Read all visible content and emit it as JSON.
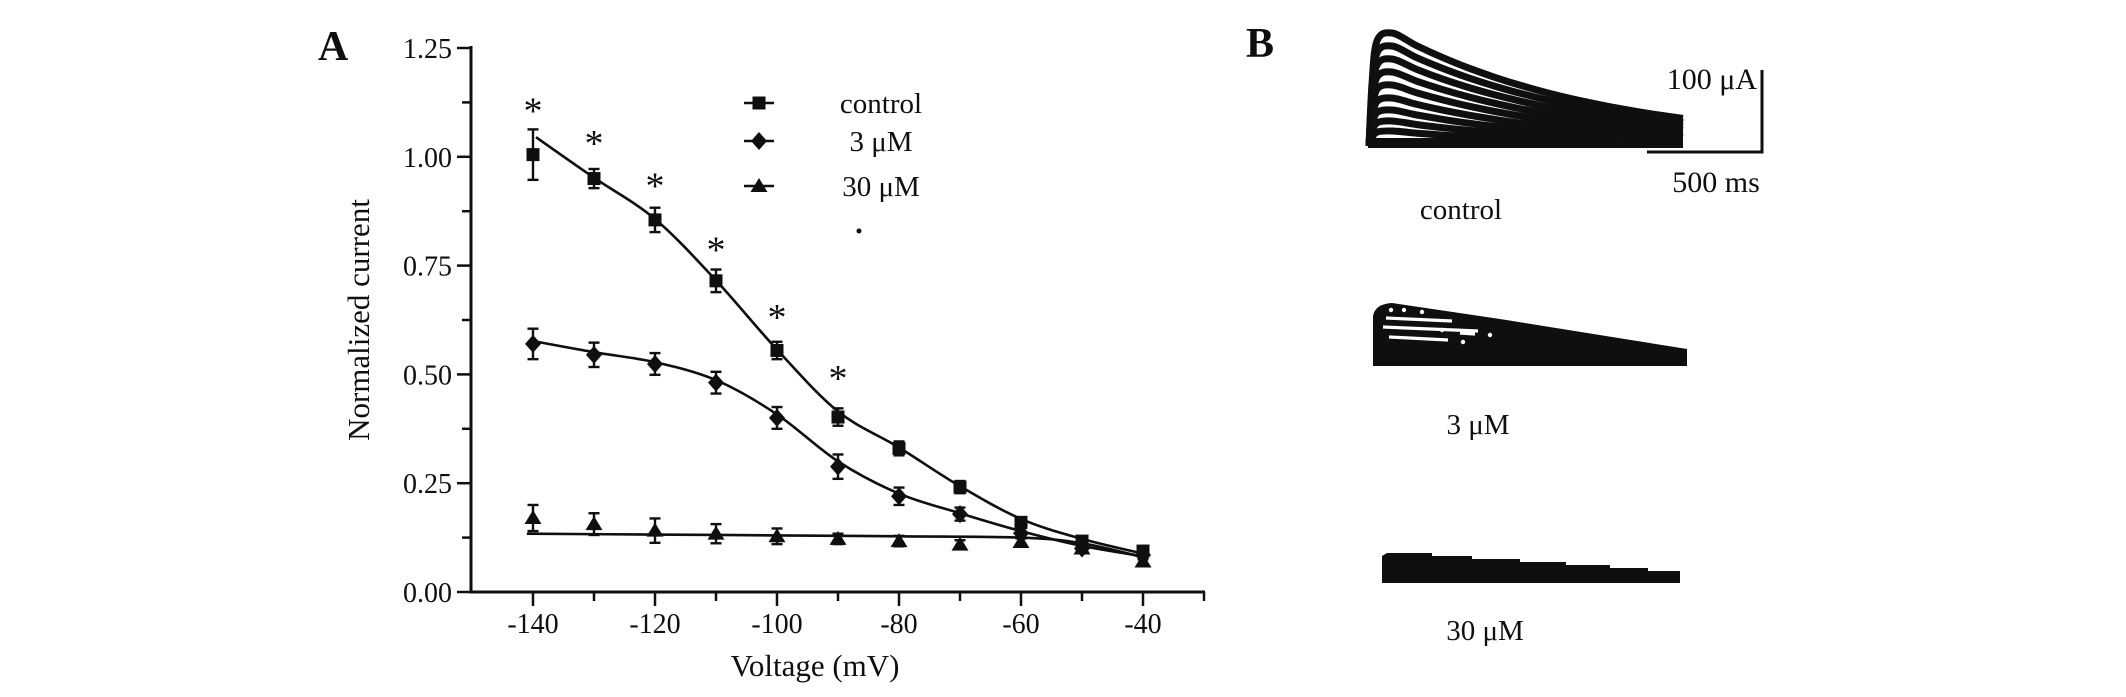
{
  "figure": {
    "background": "#ffffff",
    "ink": "#0f0f0f"
  },
  "panel_a": {
    "label": "A",
    "chart_data": {
      "type": "scatter-line",
      "xlabel": "Voltage (mV)",
      "ylabel": "Normalized current",
      "xlim": [
        -150,
        -30
      ],
      "ylim": [
        0,
        1.25
      ],
      "grid": false,
      "x": [
        -140,
        -130,
        -120,
        -110,
        -100,
        -90,
        -80,
        -70,
        -60,
        -50,
        -40
      ],
      "xticks": [
        {
          "v": -140,
          "label": "-140"
        },
        {
          "v": -120,
          "label": "-120"
        },
        {
          "v": -100,
          "label": "-100"
        },
        {
          "v": -80,
          "label": "-80"
        },
        {
          "v": -60,
          "label": "-60"
        },
        {
          "v": -40,
          "label": "-40"
        }
      ],
      "xticks_minor": [
        -130,
        -110,
        -90,
        -70,
        -50,
        -30
      ],
      "yticks": [
        {
          "v": 1.25,
          "label": "1.25"
        },
        {
          "v": 1.0,
          "label": "1.00"
        },
        {
          "v": 0.75,
          "label": "0.75"
        },
        {
          "v": 0.5,
          "label": "0.50"
        },
        {
          "v": 0.25,
          "label": "0.25"
        },
        {
          "v": 0.0,
          "label": "0.00"
        }
      ],
      "yticks_minor": [
        1.125,
        0.875,
        0.625,
        0.375,
        0.125
      ],
      "series": [
        {
          "name": "control",
          "marker": "square",
          "values": [
            1.005,
            0.95,
            0.855,
            0.715,
            0.555,
            0.402,
            0.33,
            0.241,
            0.16,
            0.117,
            0.094
          ],
          "errors": [
            0.058,
            0.022,
            0.028,
            0.026,
            0.02,
            0.02,
            0.016,
            0.014,
            0.012,
            0.01,
            0.012
          ]
        },
        {
          "name": "3 μM",
          "marker": "diamond",
          "values": [
            0.57,
            0.545,
            0.524,
            0.481,
            0.4,
            0.288,
            0.22,
            0.179,
            0.135,
            0.1,
            0.085
          ],
          "errors": [
            0.035,
            0.028,
            0.025,
            0.025,
            0.025,
            0.028,
            0.02,
            0.015,
            0.012,
            0.01,
            0.01
          ]
        },
        {
          "name": "30 μM",
          "marker": "triangle",
          "values": [
            0.17,
            0.156,
            0.141,
            0.134,
            0.128,
            0.122,
            0.117,
            0.109,
            0.115,
            0.1,
            0.07
          ],
          "errors": [
            0.03,
            0.025,
            0.028,
            0.022,
            0.018,
            0.012,
            0.012,
            0.01,
            0.01,
            0.008,
            0.008
          ]
        }
      ],
      "fit_lines": [
        {
          "series": "control",
          "points": [
            [
              -139.5,
              1.045
            ],
            [
              -130,
              0.952
            ],
            [
              -120,
              0.857
            ],
            [
              -110,
              0.716
            ],
            [
              -100,
              0.557
            ],
            [
              -90,
              0.415
            ],
            [
              -80,
              0.332
            ],
            [
              -70,
              0.243
            ],
            [
              -60,
              0.168
            ],
            [
              -50,
              0.122
            ],
            [
              -40,
              0.088
            ]
          ]
        },
        {
          "series": "3 μM",
          "points": [
            [
              -140.5,
              0.578
            ],
            [
              -130,
              0.551
            ],
            [
              -120,
              0.528
            ],
            [
              -110,
              0.487
            ],
            [
              -100,
              0.408
            ],
            [
              -90,
              0.3
            ],
            [
              -80,
              0.226
            ],
            [
              -70,
              0.181
            ],
            [
              -60,
              0.14
            ],
            [
              -50,
              0.106
            ],
            [
              -40,
              0.082
            ]
          ]
        },
        {
          "series": "30 μM",
          "points": [
            [
              -141,
              0.134
            ],
            [
              -120,
              0.132
            ],
            [
              -100,
              0.13
            ],
            [
              -80,
              0.128
            ],
            [
              -60,
              0.125
            ],
            [
              -50,
              0.112
            ],
            [
              -40,
              0.08
            ]
          ]
        }
      ],
      "significance": {
        "symbol": "*",
        "positions": [
          [
            -140,
            1.125
          ],
          [
            -130,
            1.05
          ],
          [
            -120,
            0.953
          ],
          [
            -110,
            0.805
          ],
          [
            -100,
            0.65
          ],
          [
            -90,
            0.51
          ]
        ]
      },
      "legend": {
        "entries": [
          "control",
          "3 μM",
          "30 μM"
        ],
        "position": "top-right"
      }
    }
  },
  "panel_b": {
    "label": "B",
    "scale_bar": {
      "current": "100 μA",
      "time": "500 ms"
    },
    "trace_groups": [
      {
        "label": "control",
        "n_traces": 9
      },
      {
        "label": "3 μM",
        "n_traces": 6
      },
      {
        "label": "30 μM",
        "n_traces": 3
      }
    ],
    "control_trace_amplitudes": [
      113,
      100,
      87,
      74,
      61,
      48,
      36,
      25,
      15
    ]
  }
}
